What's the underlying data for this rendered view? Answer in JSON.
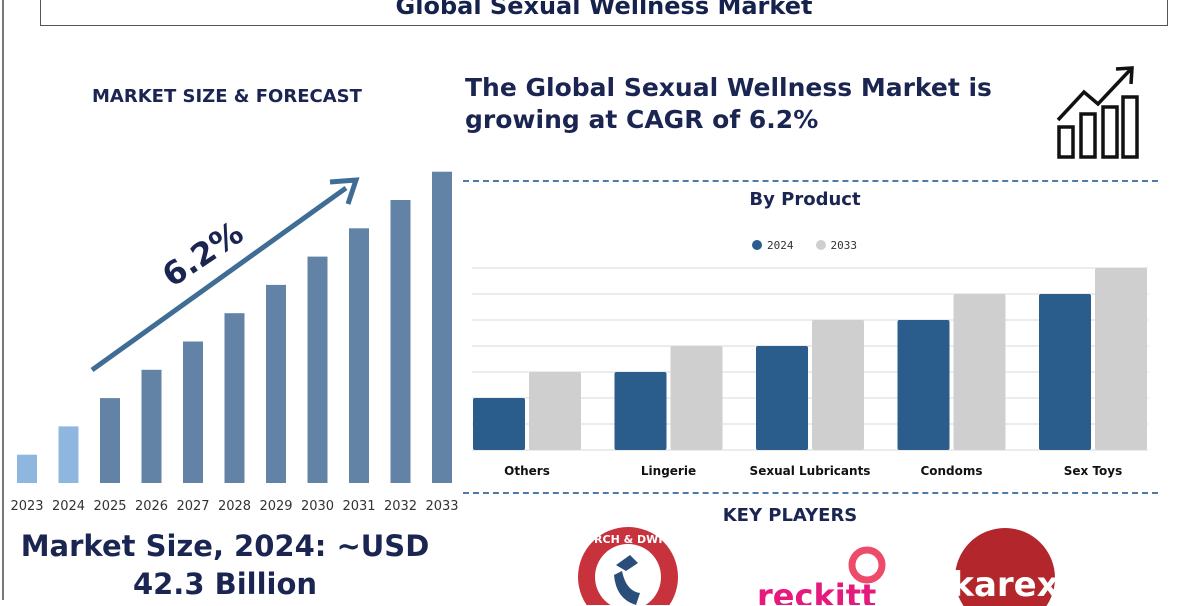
{
  "title": "Global Sexual Wellness Market",
  "left_heading": "MARKET SIZE & FORECAST",
  "headline": "The Global Sexual Wellness Market is growing at CAGR of 6.2%",
  "market_size": {
    "line1": "Market Size, 2024: ~USD",
    "line2": "42.3 Billion"
  },
  "key_players_heading": "KEY PLAYERS",
  "key_players": [
    {
      "name": "CHURCH & DWIGHT",
      "color": "#c8323c"
    },
    {
      "name": "reckitt",
      "color": "#e6197d"
    },
    {
      "name": "karex",
      "color": "#b3262c"
    }
  ],
  "icons": [
    "growth-chart-icon",
    "trend-arrow-icon"
  ],
  "chart_data": [
    {
      "type": "bar",
      "title": "",
      "categories": [
        "2023",
        "2024",
        "2025",
        "2026",
        "2027",
        "2028",
        "2029",
        "2030",
        "2031",
        "2032",
        "2033"
      ],
      "values": [
        1,
        2,
        3,
        4,
        5,
        6,
        7,
        8,
        9,
        10,
        11
      ],
      "annotation": "6.2%",
      "colors": {
        "historical": "#8fb6de",
        "forecast": "#6383a6",
        "arrow": "#3f6d95"
      },
      "grid": false
    },
    {
      "type": "bar",
      "title": "By Product",
      "categories": [
        "Others",
        "Lingerie",
        "Sexual Lubricants",
        "Condoms",
        "Sex Toys"
      ],
      "series": [
        {
          "name": "2024",
          "values": [
            2,
            3,
            4,
            5,
            6
          ],
          "color": "#2a5d8c"
        },
        {
          "name": "2033",
          "values": [
            3,
            4,
            5,
            6,
            7
          ],
          "color": "#cfcfcf"
        }
      ],
      "ylim": [
        0,
        7
      ],
      "grid": true,
      "legend": "top"
    }
  ]
}
